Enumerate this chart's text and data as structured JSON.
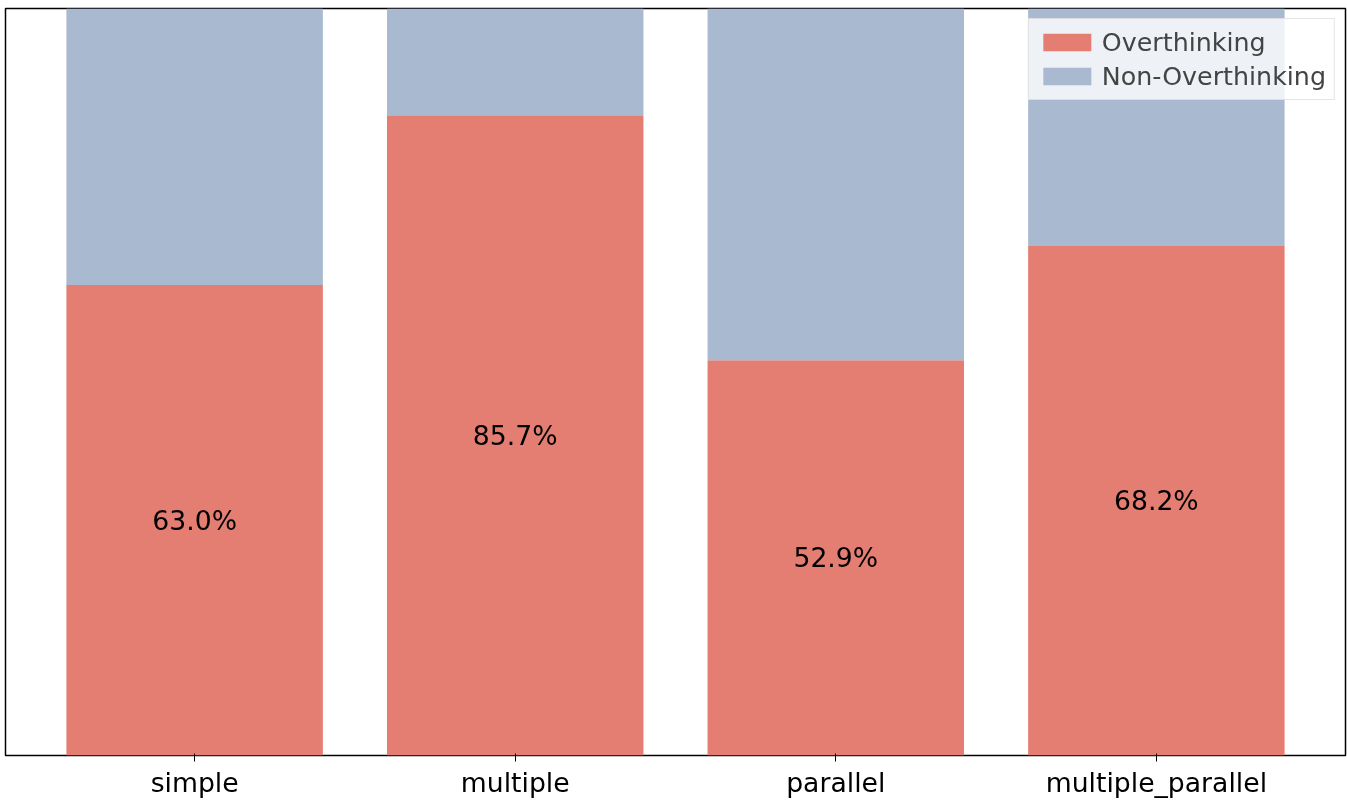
{
  "chart_data": {
    "type": "bar",
    "stacked": true,
    "ylim": [
      0,
      100
    ],
    "tick_labels": "x",
    "categories": [
      "simple",
      "multiple",
      "parallel",
      "multiple_parallel"
    ],
    "series": [
      {
        "name": "Overthinking",
        "color": "#e57e72",
        "values": [
          63.0,
          85.7,
          52.9,
          68.2
        ],
        "value_labels": [
          "63.0%",
          "85.7%",
          "52.9%",
          "68.2%"
        ]
      },
      {
        "name": "Non-Overthinking",
        "color": "#a9b9cf",
        "values": [
          37.0,
          14.3,
          47.1,
          31.8
        ]
      }
    ],
    "legend": "top right",
    "grid": false
  }
}
